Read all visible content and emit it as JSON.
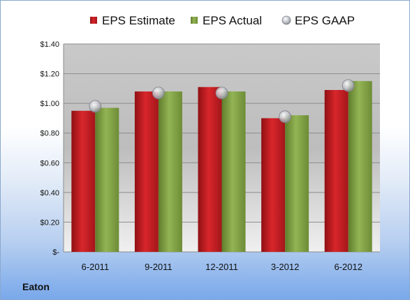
{
  "company": "Eaton",
  "colors": {
    "estimate": "#cc1f24",
    "actual": "#8aab4a",
    "gaap": "#b9bcc4",
    "plot_top": "#c9c9c9",
    "plot_bottom": "#f2f2f2"
  },
  "chart_data": {
    "type": "bar",
    "title": "",
    "xlabel": "",
    "ylabel": "",
    "categories": [
      "6-2011",
      "9-2011",
      "12-2011",
      "3-2012",
      "6-2012"
    ],
    "series": [
      {
        "name": "EPS Estimate",
        "type": "bar",
        "values": [
          0.95,
          1.08,
          1.11,
          0.9,
          1.09
        ]
      },
      {
        "name": "EPS Actual",
        "type": "bar",
        "values": [
          0.97,
          1.08,
          1.08,
          0.92,
          1.15
        ]
      },
      {
        "name": "EPS GAAP",
        "type": "marker",
        "values": [
          0.98,
          1.07,
          1.07,
          0.91,
          1.12
        ]
      }
    ],
    "ylim": [
      0,
      1.4
    ],
    "yticks": [
      0,
      0.2,
      0.4,
      0.6,
      0.8,
      1.0,
      1.2,
      1.4
    ],
    "ytick_labels": [
      "$-",
      "$0.20",
      "$0.40",
      "$0.60",
      "$0.80",
      "$1.00",
      "$1.20",
      "$1.40"
    ],
    "grid": true,
    "legend": "top"
  }
}
